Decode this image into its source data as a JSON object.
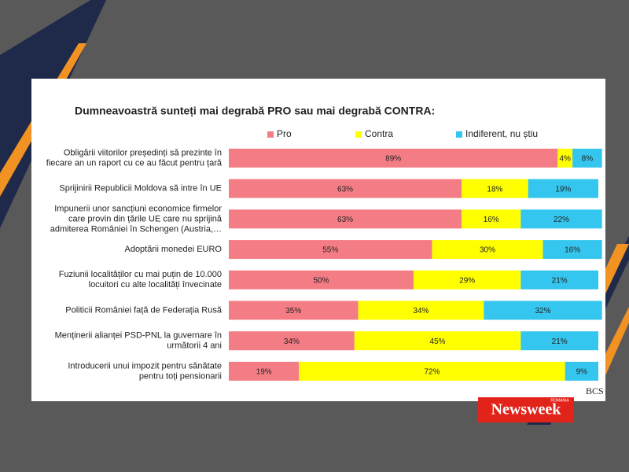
{
  "chart_data": {
    "type": "stacked-barh",
    "title": "Dumneavoastră sunteți mai degrabă PRO sau mai degrabă CONTRA:",
    "categories": [
      [
        "Obligării viitorilor președinți să prezinte în",
        "fiecare an un raport cu ce au făcut pentru țară"
      ],
      [
        "Sprijinirii Republicii Moldova să intre în UE"
      ],
      [
        "Impunerii unor sancțiuni economice firmelor",
        "care provin din țările UE care nu sprijină",
        "admiterea României în Schengen (Austria,…"
      ],
      [
        "Adoptării monedei EURO"
      ],
      [
        "Fuziunii localităților cu mai puțin de 10.000",
        "locuitori cu alte localități învecinate"
      ],
      [
        "Politicii României față de Federația Rusă"
      ],
      [
        "Menținerii alianței PSD-PNL la guvernare în",
        "următorii 4 ani"
      ],
      [
        "Introducerii unui impozit pentru sănătate",
        "pentru toți pensionarii"
      ]
    ],
    "series": [
      {
        "name": "Pro",
        "color": "#f47c84",
        "values": [
          89,
          63,
          63,
          55,
          50,
          35,
          34,
          19
        ],
        "value_labels": [
          "89%",
          "63%",
          "63%",
          "55%",
          "50%",
          "35%",
          "34%",
          "19%"
        ]
      },
      {
        "name": "Contra",
        "color": "#ffff00",
        "values": [
          4,
          18,
          16,
          30,
          29,
          34,
          45,
          72
        ],
        "value_labels": [
          "4%",
          "18%",
          "16%",
          "30%",
          "29%",
          "34%",
          "45%",
          "72%"
        ]
      },
      {
        "name": "Indiferent, nu știu",
        "color": "#34c6ee",
        "values": [
          8,
          19,
          22,
          16,
          21,
          32,
          21,
          9
        ],
        "value_labels": [
          "8%",
          "19%",
          "22%",
          "16%",
          "21%",
          "32%",
          "21%",
          "9%"
        ]
      }
    ]
  },
  "logo": {
    "brand": "Newsweek",
    "edition": "ROMANIA"
  },
  "source": "BCS"
}
